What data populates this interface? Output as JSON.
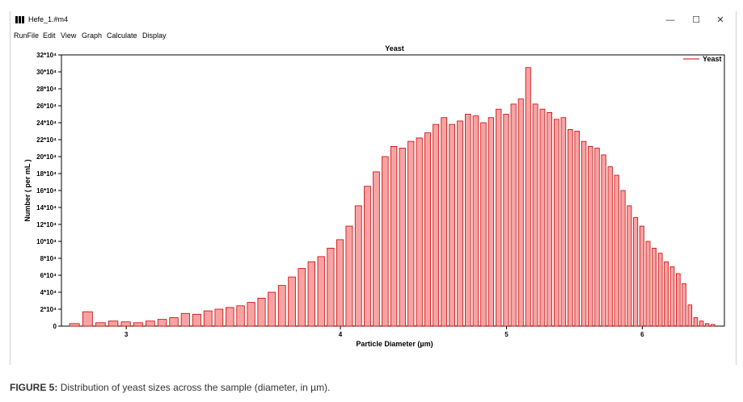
{
  "window": {
    "title": "Hefe_1.#m4",
    "minimize_glyph": "—",
    "maximize_glyph": "☐",
    "close_glyph": "✕"
  },
  "menu": [
    "RunFile",
    "Edit",
    "View",
    "Graph",
    "Calculate",
    "Display"
  ],
  "caption": {
    "label": "FIGURE 5:",
    "text": "Distribution of yeast sizes across the sample (diameter, in µm)."
  },
  "colors": {
    "bar_fill": "#f7a3a3",
    "bar_stroke": "#cc0000",
    "legend_line": "#cc0000"
  },
  "chart_data": {
    "type": "bar",
    "title": "Yeast",
    "xlabel": "Particle Diameter (µm)",
    "ylabel": "Number ( per mL )",
    "x_scale": "log",
    "xlim": [
      2.75,
      6.7
    ],
    "ylim": [
      0,
      320000
    ],
    "x_ticks": [
      3,
      4,
      5,
      6
    ],
    "y_tick_labels": [
      "0",
      "2*10⁴",
      "4*10⁴",
      "6*10⁴",
      "8*10⁴",
      "10*10⁴",
      "12*10⁴",
      "14*10⁴",
      "16*10⁴",
      "18*10⁴",
      "20*10⁴",
      "22*10⁴",
      "24*10⁴",
      "26*10⁴",
      "28*10⁴",
      "30*10⁴",
      "32*10⁴"
    ],
    "y_tick_values": [
      0,
      20000,
      40000,
      60000,
      80000,
      100000,
      120000,
      140000,
      160000,
      180000,
      200000,
      220000,
      240000,
      260000,
      280000,
      300000,
      320000
    ],
    "legend": {
      "position": "top-right",
      "entries": [
        "Yeast"
      ]
    },
    "grid": false,
    "series": [
      {
        "name": "Yeast",
        "x": [
          2.8,
          2.85,
          2.9,
          2.95,
          3.0,
          3.05,
          3.1,
          3.15,
          3.2,
          3.25,
          3.3,
          3.35,
          3.4,
          3.45,
          3.5,
          3.55,
          3.6,
          3.65,
          3.7,
          3.75,
          3.8,
          3.85,
          3.9,
          3.95,
          4.0,
          4.05,
          4.1,
          4.15,
          4.2,
          4.25,
          4.3,
          4.35,
          4.4,
          4.45,
          4.5,
          4.55,
          4.6,
          4.65,
          4.7,
          4.75,
          4.8,
          4.85,
          4.9,
          4.95,
          5.0,
          5.05,
          5.1,
          5.15,
          5.2,
          5.25,
          5.3,
          5.35,
          5.4,
          5.45,
          5.5,
          5.55,
          5.6,
          5.65,
          5.7,
          5.75,
          5.8,
          5.85,
          5.9,
          5.95,
          6.0,
          6.05,
          6.1,
          6.15,
          6.2,
          6.25,
          6.3,
          6.35,
          6.4,
          6.45,
          6.5,
          6.55,
          6.6
        ],
        "values": [
          3000,
          17000,
          4000,
          6000,
          5000,
          4000,
          6000,
          8000,
          10000,
          15000,
          14000,
          18000,
          20000,
          22000,
          24000,
          28000,
          33000,
          40000,
          48000,
          58000,
          68000,
          76000,
          82000,
          92000,
          102000,
          118000,
          142000,
          165000,
          182000,
          200000,
          212000,
          210000,
          218000,
          222000,
          228000,
          238000,
          246000,
          238000,
          242000,
          250000,
          248000,
          240000,
          246000,
          256000,
          250000,
          262000,
          268000,
          305000,
          262000,
          256000,
          252000,
          244000,
          246000,
          232000,
          230000,
          218000,
          212000,
          210000,
          202000,
          188000,
          178000,
          160000,
          142000,
          128000,
          118000,
          100000,
          92000,
          86000,
          76000,
          70000,
          62000,
          50000,
          25000,
          10000,
          6000,
          3000,
          2000
        ]
      }
    ]
  }
}
